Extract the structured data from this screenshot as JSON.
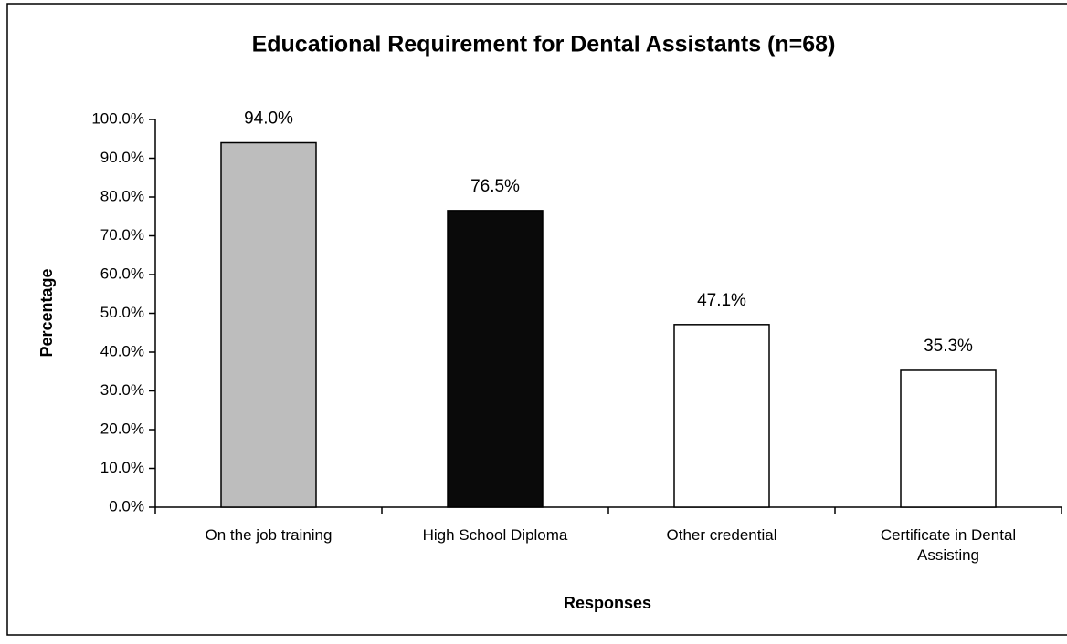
{
  "chart_data": {
    "type": "bar",
    "title": "Educational Requirement for Dental Assistants (n=68)",
    "x_label": "Responses",
    "y_label": "Percentage",
    "categories": [
      "On the job training",
      "High School Diploma",
      "Other credential",
      "Certificate in Dental Assisting"
    ],
    "values": [
      94.0,
      76.5,
      47.1,
      35.3
    ],
    "value_labels": [
      "94.0%",
      "76.5%",
      "47.1%",
      "35.3%"
    ],
    "colors": [
      "#bdbdbd",
      "#0a0a0a",
      "#ffffff",
      "#ffffff"
    ],
    "ylim": [
      0,
      100
    ],
    "yticks": [
      {
        "value": 0,
        "label": "0.0%"
      },
      {
        "value": 10,
        "label": "10.0%"
      },
      {
        "value": 20,
        "label": "20.0%"
      },
      {
        "value": 30,
        "label": "30.0%"
      },
      {
        "value": 40,
        "label": "40.0%"
      },
      {
        "value": 50,
        "label": "50.0%"
      },
      {
        "value": 60,
        "label": "60.0%"
      },
      {
        "value": 70,
        "label": "70.0%"
      },
      {
        "value": 80,
        "label": "80.0%"
      },
      {
        "value": 90,
        "label": "90.0%"
      },
      {
        "value": 100,
        "label": "100.0%"
      }
    ],
    "grid": false
  }
}
